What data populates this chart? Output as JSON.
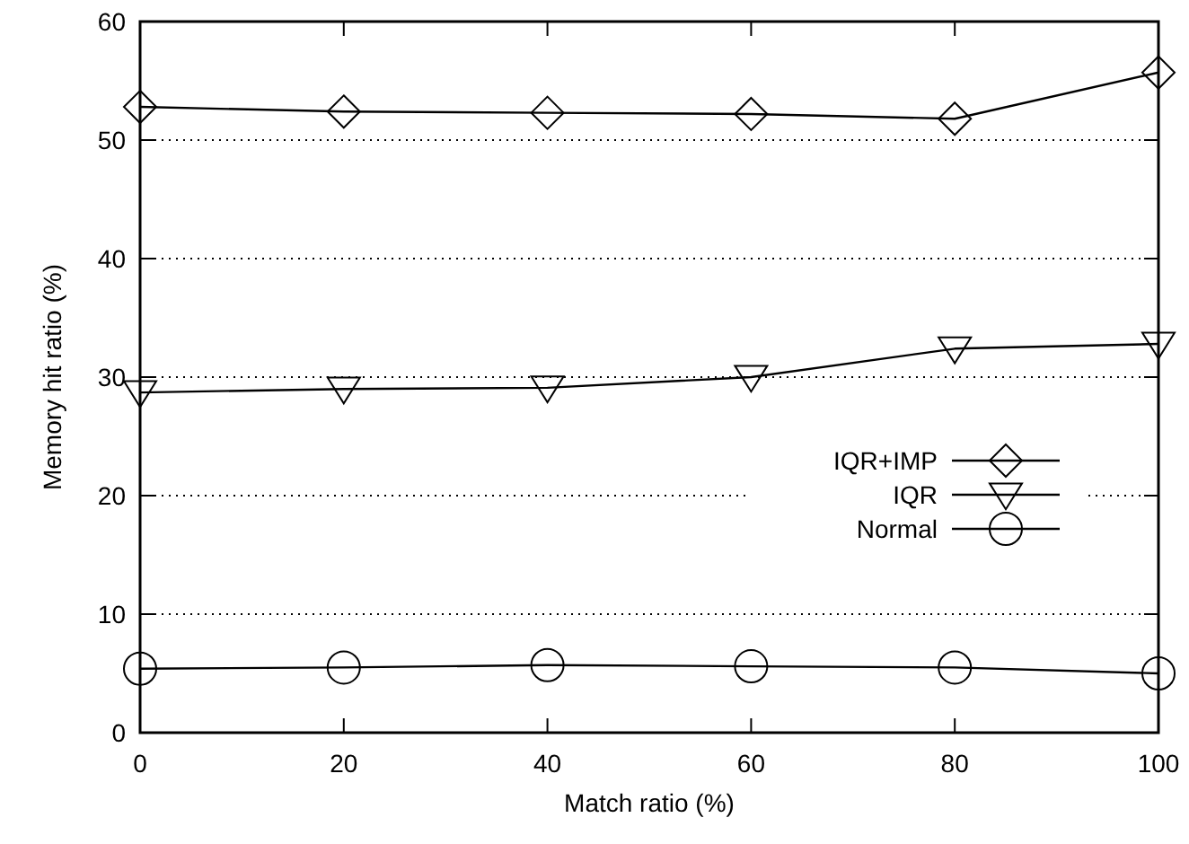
{
  "chart_data": {
    "type": "line",
    "xlabel": "Match ratio (%)",
    "ylabel": "Memory hit ratio (%)",
    "x": [
      0,
      20,
      40,
      60,
      80,
      100
    ],
    "series": [
      {
        "name": "IQR+IMP",
        "color": "#000000",
        "marker": "diamond",
        "values": [
          52.8,
          52.4,
          52.3,
          52.2,
          51.8,
          55.7
        ]
      },
      {
        "name": "IQR",
        "color": "#000000",
        "marker": "triangle",
        "values": [
          28.7,
          29.0,
          29.1,
          30.0,
          32.4,
          32.8
        ]
      },
      {
        "name": "Normal",
        "color": "#000000",
        "marker": "circle",
        "values": [
          5.4,
          5.5,
          5.7,
          5.6,
          5.5,
          5.0
        ]
      }
    ],
    "xlim": [
      0,
      100
    ],
    "xticks": [
      0,
      20,
      40,
      60,
      80,
      100
    ],
    "ylim": [
      0,
      60
    ],
    "yticks": [
      0,
      10,
      20,
      30,
      40,
      50,
      60
    ],
    "grid": "y",
    "legend": "right",
    "line_style": "solid"
  }
}
